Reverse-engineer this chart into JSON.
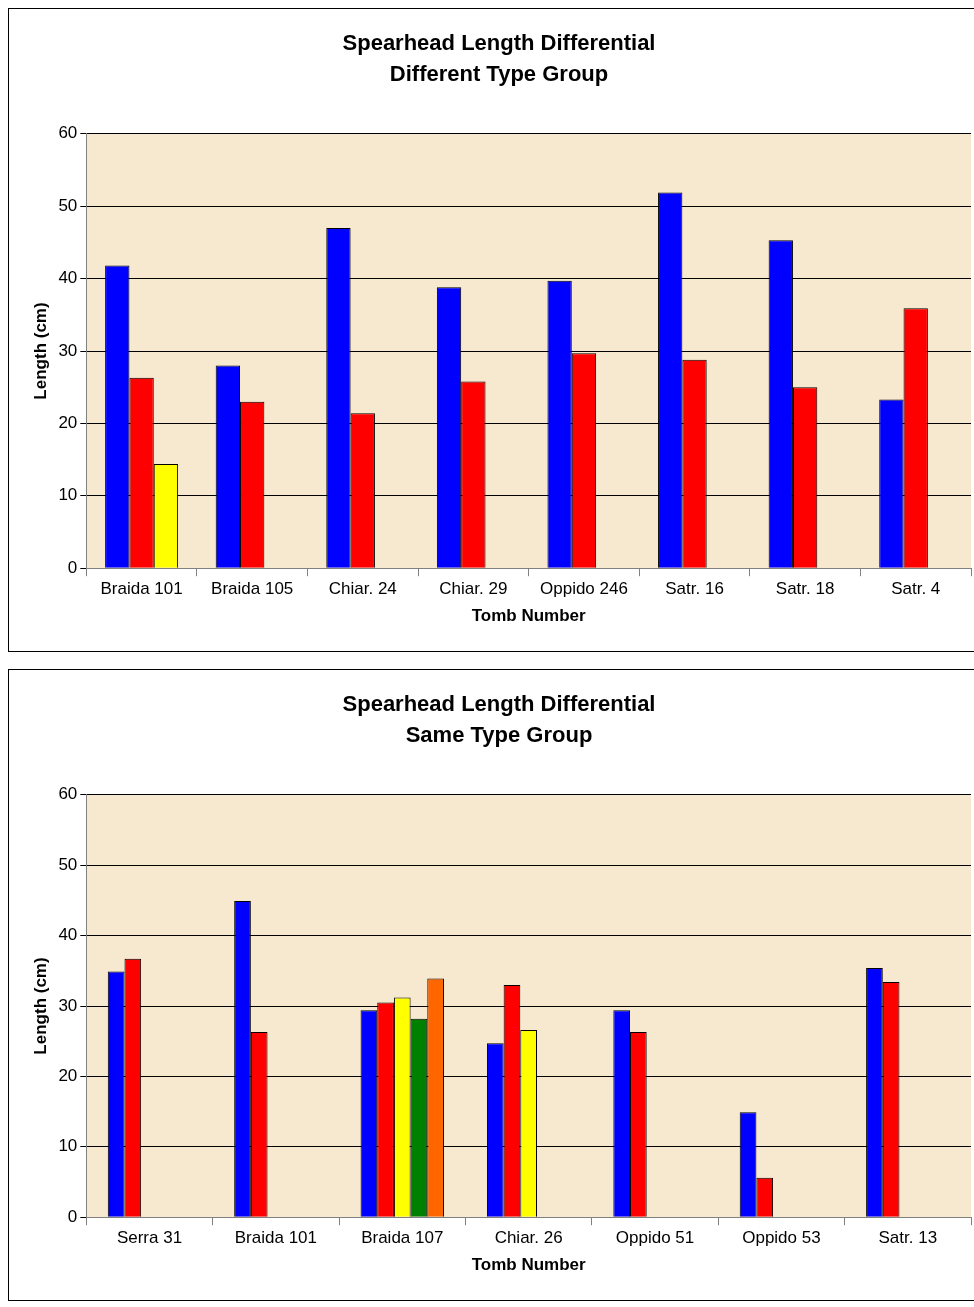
{
  "chart_data": [
    {
      "type": "bar",
      "title": "Spearhead Length Differential",
      "subtitle": "Different Type Group",
      "xlabel": "Tomb Number",
      "ylabel": "Length (cm)",
      "categories": [
        "Braida 101",
        "Braida 105",
        "Chiar. 24",
        "Chiar. 29",
        "Oppido 246",
        "Satr. 16",
        "Satr. 18",
        "Satr. 4"
      ],
      "series": [
        {
          "color": "#0000ff",
          "values": [
            41.8,
            28,
            47,
            38.8,
            39.7,
            51.9,
            45.3,
            23.3
          ]
        },
        {
          "color": "#ff0000",
          "values": [
            26.3,
            23,
            21.4,
            25.8,
            29.7,
            28.8,
            25,
            35.9
          ]
        },
        {
          "color": "#ffff00",
          "values": [
            14.4,
            null,
            null,
            null,
            null,
            null,
            null,
            null
          ]
        }
      ],
      "ylim": [
        0,
        60
      ],
      "yticks": [
        0,
        10,
        20,
        30,
        40,
        50,
        60
      ],
      "grid": "y",
      "legend": false
    },
    {
      "type": "bar",
      "title": "Spearhead Length Differential",
      "subtitle": "Same Type Group",
      "xlabel": "Tomb Number",
      "ylabel": "Length (cm)",
      "categories": [
        "Serra 31",
        "Braida 101",
        "Braida 107",
        "Chiar. 26",
        "Oppido 51",
        "Oppido 53",
        "Satr. 13"
      ],
      "series": [
        {
          "color": "#0000ff",
          "values": [
            34.9,
            44.9,
            29.4,
            24.7,
            29.4,
            14.9,
            35.4
          ]
        },
        {
          "color": "#ff0000",
          "values": [
            36.7,
            26.3,
            30.5,
            33,
            26.3,
            5.6,
            33.4
          ]
        },
        {
          "color": "#ffff00",
          "values": [
            null,
            null,
            31.2,
            26.6,
            null,
            null,
            null
          ]
        },
        {
          "color": "#008000",
          "values": [
            null,
            null,
            28.2,
            null,
            null,
            null,
            null
          ]
        },
        {
          "color": "#ff6600",
          "values": [
            null,
            null,
            33.9,
            null,
            null,
            null,
            null
          ]
        }
      ],
      "ylim": [
        0,
        60
      ],
      "yticks": [
        0,
        10,
        20,
        30,
        40,
        50,
        60
      ],
      "grid": "y",
      "legend": false
    }
  ]
}
